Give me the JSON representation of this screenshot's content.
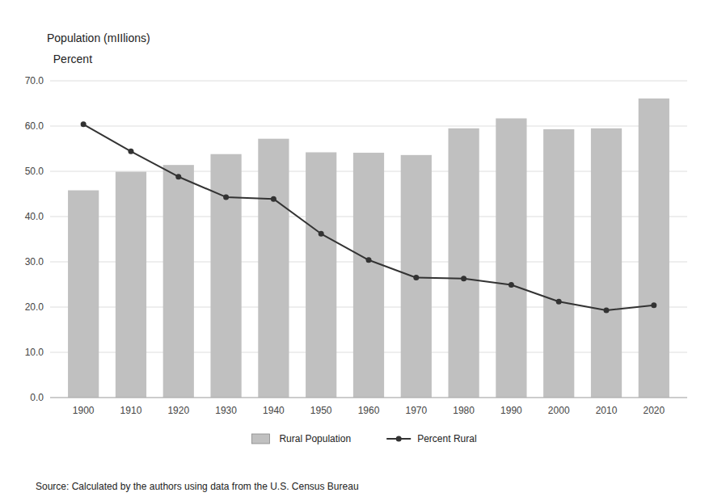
{
  "chart_data": {
    "type": "bar",
    "annotations": [
      "Population (mIIlions)",
      "  Percent",
      "Source: Calculated by the authors using data from the U.S. Census Bureau"
    ],
    "x": [
      1900,
      1910,
      1920,
      1930,
      1940,
      1950,
      1960,
      1970,
      1980,
      1990,
      2000,
      2010,
      2020
    ],
    "xlim": [
      1893,
      2027
    ],
    "xticks": [
      1900,
      1910,
      1920,
      1930,
      1940,
      1950,
      1960,
      1970,
      1980,
      1990,
      2000,
      2010,
      2020
    ],
    "series": [
      {
        "name": "Rural Population",
        "type": "bar",
        "color": "#c0c0c0",
        "values": [
          45.8,
          49.9,
          51.4,
          53.8,
          57.2,
          54.2,
          54.1,
          53.6,
          59.5,
          61.7,
          59.3,
          59.5,
          66.1
        ]
      },
      {
        "name": "Percent Rural",
        "type": "line",
        "color": "#333333",
        "marker": "circle",
        "values": [
          60.4,
          54.4,
          48.8,
          44.3,
          43.9,
          36.2,
          30.4,
          26.5,
          26.3,
          24.9,
          21.2,
          19.3,
          20.4
        ]
      }
    ],
    "ylim": [
      0,
      70
    ],
    "yticks": [
      {
        "value": 0,
        "label": "0.0"
      },
      {
        "value": 10,
        "label": "10.0"
      },
      {
        "value": 20,
        "label": "20.0"
      },
      {
        "value": 30,
        "label": "30.0"
      },
      {
        "value": 40,
        "label": "40.0"
      },
      {
        "value": 50,
        "label": "50.0"
      },
      {
        "value": 60,
        "label": "60.0"
      },
      {
        "value": 70,
        "label": "70.0"
      }
    ],
    "grid": true,
    "legend": "bottom"
  }
}
